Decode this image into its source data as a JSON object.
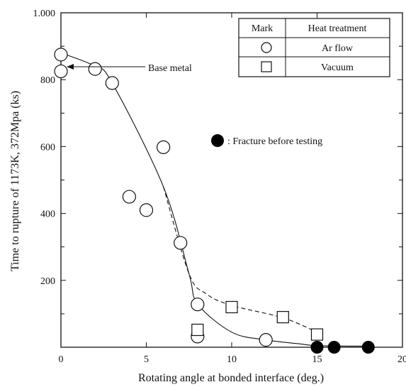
{
  "chart_data": {
    "type": "scatter",
    "xlabel": "Rotating angle at bonded interface (deg.)",
    "ylabel": "Time to rupture of 1173K, 372Mpa (ks)",
    "xlim": [
      0,
      20
    ],
    "ylim": [
      0,
      1000
    ],
    "x_ticks": [
      0,
      5,
      10,
      15,
      20
    ],
    "y_ticks": [
      200,
      400,
      600,
      800,
      1000
    ],
    "x_tick_labels": [
      "0",
      "5",
      "10",
      "15",
      "20"
    ],
    "y_tick_labels": [
      "200",
      "400",
      "600",
      "800",
      "1.000"
    ],
    "grid": false,
    "legend": {
      "position": "top-right",
      "header": [
        "Mark",
        "Heat treatment"
      ],
      "entries": [
        {
          "marker": "circle-open",
          "label": "Ar flow"
        },
        {
          "marker": "square-open",
          "label": "Vacuum"
        }
      ]
    },
    "series": [
      {
        "marker": "circle-open",
        "points": [
          [
            0,
            875
          ],
          [
            0,
            825
          ],
          [
            2,
            832
          ],
          [
            3,
            790
          ],
          [
            4,
            450
          ],
          [
            5,
            410
          ],
          [
            6,
            598
          ],
          [
            7,
            312
          ],
          [
            8,
            128
          ],
          [
            8,
            32
          ],
          [
            12,
            22
          ]
        ]
      },
      {
        "marker": "square-open",
        "points": [
          [
            8,
            52
          ],
          [
            10,
            120
          ],
          [
            13,
            90
          ],
          [
            15,
            38
          ]
        ]
      },
      {
        "marker": "circle-filled",
        "points": [
          [
            15,
            0
          ],
          [
            16,
            0
          ],
          [
            18,
            0
          ]
        ]
      }
    ],
    "curves": [
      {
        "style": "solid",
        "points": [
          [
            0,
            880
          ],
          [
            2,
            840
          ],
          [
            3,
            790
          ],
          [
            6,
            480
          ],
          [
            7.5,
            220
          ],
          [
            8,
            130
          ],
          [
            10,
            45
          ],
          [
            12,
            22
          ],
          [
            14,
            10
          ],
          [
            15,
            5
          ],
          [
            18,
            3
          ]
        ]
      },
      {
        "style": "dashed",
        "points": [
          [
            6,
            480
          ],
          [
            7.5,
            220
          ],
          [
            8.5,
            160
          ],
          [
            10,
            125
          ],
          [
            13,
            88
          ],
          [
            15,
            45
          ]
        ]
      }
    ],
    "annotations": [
      {
        "text": "Base metal",
        "target": [
          0,
          825
        ]
      },
      {
        "text": ": Fracture before testing",
        "marker": "circle-filled"
      }
    ]
  }
}
